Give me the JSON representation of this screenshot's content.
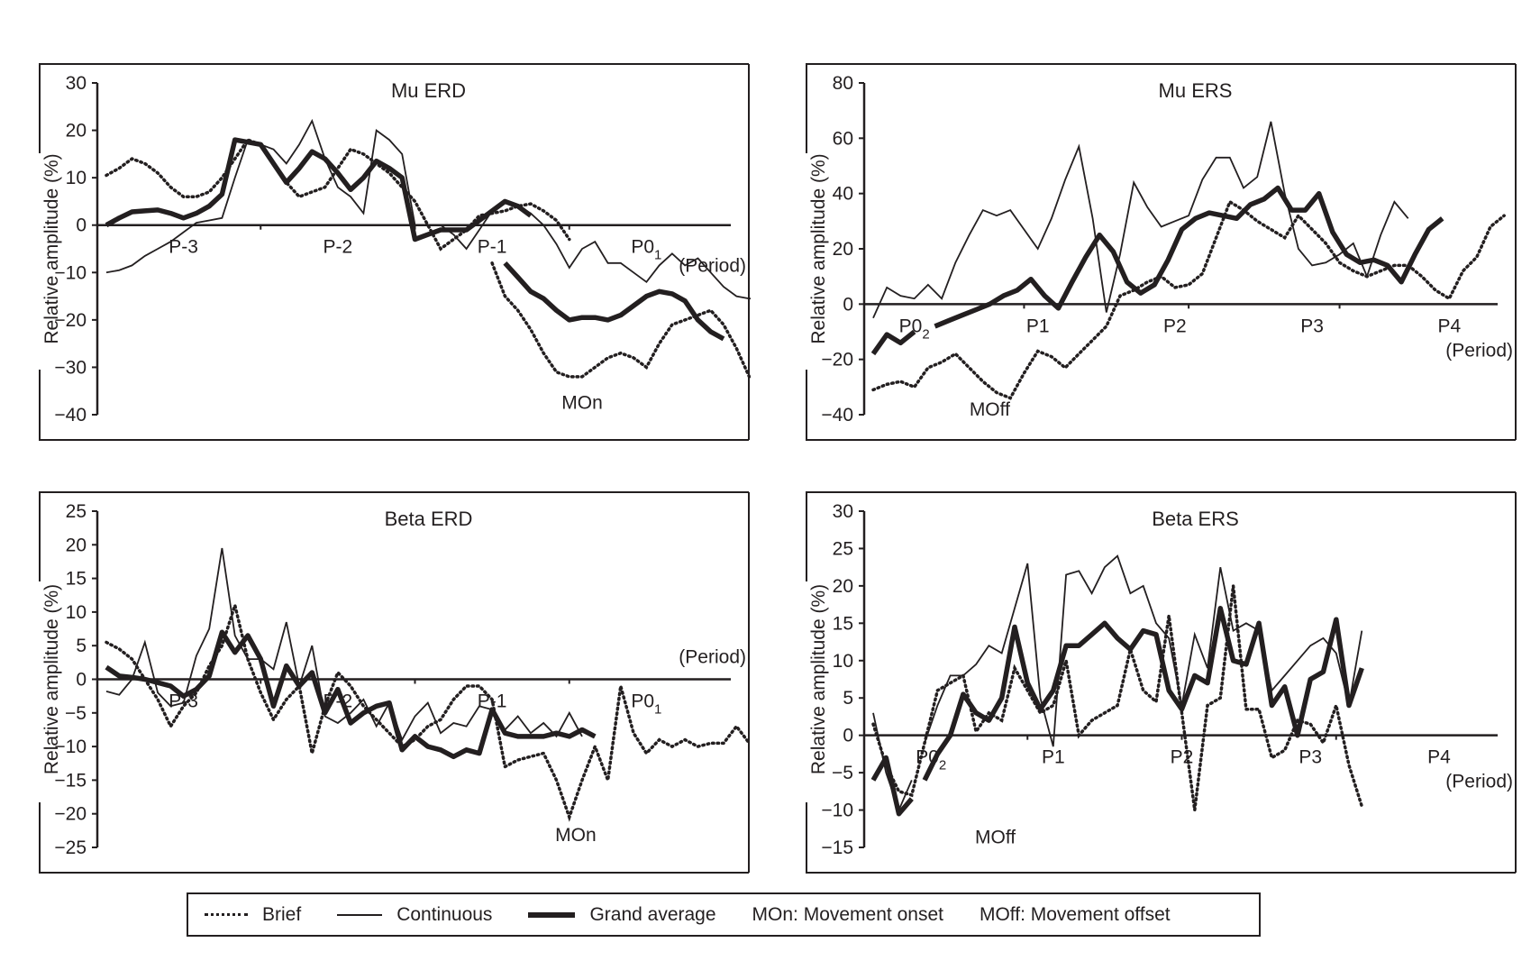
{
  "chart_data": [
    {
      "type": "line",
      "id": "mu-erd",
      "title": "Mu ERD",
      "xlabel": "(Period)",
      "ylabel": "Relative amplitude (%)",
      "ylim": [
        -40,
        30
      ],
      "yticks": [
        30,
        20,
        10,
        0,
        -10,
        -20,
        -30,
        -40
      ],
      "period_labels": [
        {
          "text": "P-3",
          "x": 6
        },
        {
          "text": "P-2",
          "x": 18
        },
        {
          "text": "P-1",
          "x": 30
        },
        {
          "text": "P0",
          "sub": "1",
          "x": 42
        }
      ],
      "event_label": {
        "text": "MOn",
        "x": 37,
        "y": -38
      },
      "period_label_pos": "right-below",
      "x_count": 49,
      "series": [
        {
          "name": "Brief",
          "style": "dotted",
          "segments": [
            {
              "x0": 0,
              "values": [
                10.5,
                12,
                14,
                13,
                11,
                8,
                6,
                6,
                7,
                10,
                14,
                18,
                17,
                13,
                9,
                6,
                7,
                8,
                12,
                16,
                15,
                13,
                11,
                8,
                5,
                0,
                -5,
                -3,
                -1,
                2,
                2.5,
                3,
                4,
                4.5,
                3,
                1,
                -3
              ]
            },
            {
              "x0": 30,
              "values": [
                -8,
                -15,
                -18,
                -22,
                -27,
                -31,
                -32,
                -32,
                -30,
                -28,
                -27,
                -28,
                -30,
                -25,
                -21,
                -20,
                -19,
                -18,
                -21,
                -26,
                -32
              ]
            }
          ]
        },
        {
          "name": "Continuous",
          "style": "thin",
          "segments": [
            {
              "x0": 0,
              "values": [
                -10,
                -9.5,
                -8.5,
                -6.5,
                -5,
                -3.5,
                -1.5,
                0.5,
                1,
                1.5,
                10,
                18,
                17,
                16,
                13,
                17,
                22,
                14,
                8,
                6,
                2.5,
                20,
                18,
                15,
                0,
                0,
                0,
                -2,
                -5,
                -1,
                3,
                5,
                4,
                2.5,
                0,
                -4,
                -9,
                -5,
                -3.5,
                -8,
                -8,
                -10,
                -12,
                -8.5,
                -6,
                -8.5,
                -7,
                -10,
                -13,
                -15,
                -15.5,
                -15.5
              ]
            }
          ]
        },
        {
          "name": "Grand average",
          "style": "thick",
          "segments": [
            {
              "x0": 0,
              "values": [
                0,
                1.5,
                2.8,
                3,
                3.2,
                2.5,
                1.5,
                2.5,
                4,
                6.5,
                18,
                17.5,
                17,
                13,
                9,
                12,
                15.5,
                14,
                11,
                7.5,
                10,
                13.5,
                12,
                10,
                -3,
                -2,
                -1,
                -1,
                -1,
                1,
                3,
                5,
                4,
                2
              ]
            },
            {
              "x0": 31,
              "values": [
                -8,
                -11,
                -14,
                -15.5,
                -18,
                -20,
                -19.5,
                -19.5,
                -20,
                -19,
                -17,
                -15,
                -14,
                -14.5,
                -16,
                -20,
                -22.5,
                -24
              ]
            }
          ]
        }
      ]
    },
    {
      "type": "line",
      "id": "mu-ers",
      "title": "Mu ERS",
      "xlabel": "(Period)",
      "ylabel": "Relative amplitude (%)",
      "ylim": [
        -40,
        80
      ],
      "yticks": [
        80,
        60,
        40,
        20,
        0,
        -20,
        -40
      ],
      "period_labels": [
        {
          "text": "P0",
          "sub": "2",
          "x": 3
        },
        {
          "text": "P1",
          "x": 12
        },
        {
          "text": "P2",
          "x": 22
        },
        {
          "text": "P3",
          "x": 32
        },
        {
          "text": "P4",
          "x": 42
        }
      ],
      "event_label": {
        "text": "MOff",
        "x": 8.5,
        "y": -39
      },
      "x_count": 46,
      "series": [
        {
          "name": "Brief",
          "style": "dotted",
          "segments": [
            {
              "x0": 0,
              "values": [
                -31,
                -29,
                -28,
                -30,
                -23,
                -21,
                -18,
                -23,
                -28,
                -32,
                -34,
                -25,
                -17,
                -19,
                -23,
                -18,
                -13,
                -8,
                3,
                5,
                8,
                10,
                6,
                7,
                11,
                24,
                37,
                34,
                30,
                27,
                24,
                32,
                27,
                22,
                15,
                12,
                10,
                12,
                14,
                14,
                10,
                5,
                2,
                12,
                17,
                28,
                32
              ]
            }
          ]
        },
        {
          "name": "Continuous",
          "style": "thin",
          "segments": [
            {
              "x0": 0,
              "values": [
                -5,
                6,
                3,
                2,
                7,
                2,
                15,
                25,
                34,
                32,
                34,
                27,
                20,
                31,
                45,
                57,
                31,
                -3,
                18,
                44,
                35,
                28,
                30,
                32,
                45,
                53,
                53,
                42,
                46,
                66,
                40,
                20,
                14,
                15,
                18,
                22,
                10,
                25,
                37,
                31
              ]
            }
          ]
        },
        {
          "name": "Grand average",
          "style": "thick",
          "segments": [
            {
              "x0": 0,
              "values": [
                -18,
                -11,
                -14,
                -10
              ]
            },
            {
              "x0": 4.5,
              "values": [
                -8,
                -6,
                -4,
                -2,
                0,
                3,
                5,
                9,
                3,
                -1.5,
                8,
                17,
                25,
                19,
                8,
                4,
                7,
                16,
                27,
                31,
                33,
                32,
                31,
                36,
                38,
                42,
                34,
                34,
                40,
                26,
                18,
                15,
                16,
                14,
                8,
                18,
                27,
                31
              ]
            }
          ]
        }
      ]
    },
    {
      "type": "line",
      "id": "beta-erd",
      "title": "Beta ERD",
      "xlabel": "(Period)",
      "ylabel": "Relative amplitude (%)",
      "ylim": [
        -25,
        25
      ],
      "yticks": [
        25,
        20,
        15,
        10,
        5,
        0,
        -5,
        -10,
        -15,
        -20,
        -25
      ],
      "period_labels": [
        {
          "text": "P-3",
          "x": 6
        },
        {
          "text": "P-2",
          "x": 18
        },
        {
          "text": "P-1",
          "x": 30
        },
        {
          "text": "P0",
          "sub": "1",
          "x": 42
        }
      ],
      "event_label": {
        "text": "MOn",
        "x": 36.5,
        "y": -23.5
      },
      "x_count": 49,
      "series": [
        {
          "name": "Brief",
          "style": "dotted",
          "segments": [
            {
              "x0": 0,
              "values": [
                5.5,
                4.5,
                3,
                0,
                -3,
                -7,
                -4,
                -2,
                2,
                5,
                11,
                3,
                -2,
                -6,
                -3,
                -1,
                -11,
                -4,
                1,
                -1,
                -4,
                -6,
                -8,
                -10,
                -9,
                -7,
                -6,
                -3,
                -1,
                -1,
                -3,
                -13,
                -12,
                -11.5,
                -11,
                -15,
                -20.5,
                -15,
                -10,
                -15,
                -1,
                -8,
                -11,
                -9,
                -10,
                -9,
                -10,
                -9.5,
                -9.5,
                -7,
                -9.5
              ]
            }
          ]
        },
        {
          "name": "Continuous",
          "style": "thin",
          "segments": [
            {
              "x0": 0,
              "values": [
                -1.8,
                -2.3,
                0,
                5.5,
                -2,
                -4,
                -3.5,
                3.5,
                7.5,
                19.5,
                6.5,
                3,
                3,
                1.5,
                8.5,
                -1,
                5,
                -5.5,
                -6.5,
                -5,
                -3,
                -7,
                -3.5,
                -9,
                -5.5,
                -3.5,
                -8,
                -6.5,
                -7,
                -4,
                -4.5,
                -7.5,
                -5.5,
                -8,
                -6.5,
                -8.5,
                -5,
                -8.5
              ]
            }
          ]
        },
        {
          "name": "Grand average",
          "style": "thick",
          "segments": [
            {
              "x0": 0,
              "values": [
                1.8,
                0.5,
                0.3,
                0,
                -0.5,
                -1,
                -2.5,
                -1.5,
                0.5,
                7,
                4,
                6.5,
                3,
                -4,
                2,
                -1,
                1,
                -5,
                -1.5,
                -6.5,
                -5,
                -4,
                -3.5,
                -10.5,
                -8.5,
                -10,
                -10.5,
                -11.5,
                -10.5,
                -11,
                -4.5,
                -8,
                -8.5,
                -8.5,
                -8.5,
                -8,
                -8.5,
                -7.5,
                -8.5
              ]
            }
          ]
        }
      ]
    },
    {
      "type": "line",
      "id": "beta-ers",
      "title": "Beta ERS",
      "xlabel": "(Period)",
      "ylabel": "Relative amplitude (%)",
      "ylim": [
        -15,
        30
      ],
      "yticks": [
        30,
        25,
        20,
        15,
        10,
        5,
        0,
        -5,
        -10,
        -15
      ],
      "period_labels": [
        {
          "text": "P0",
          "sub": "2",
          "x": 4.5
        },
        {
          "text": "P1",
          "x": 14
        },
        {
          "text": "P2",
          "x": 24
        },
        {
          "text": "P3",
          "x": 34
        },
        {
          "text": "P4",
          "x": 44
        }
      ],
      "event_label": {
        "text": "MOff",
        "x": 9.5,
        "y": -14
      },
      "x_count": 49,
      "series": [
        {
          "name": "Brief",
          "style": "dotted",
          "segments": [
            {
              "x0": 0,
              "values": [
                1.5,
                -4,
                -7.5,
                -8,
                -1,
                6,
                7,
                8,
                0.5,
                3,
                2,
                9,
                6,
                3,
                4,
                10,
                0,
                2,
                3,
                4,
                11.5,
                6,
                4.5,
                16,
                3,
                -10,
                4,
                5,
                20,
                3.5,
                3.5,
                -3,
                -2,
                2,
                1.5,
                -1,
                4,
                -4,
                -9.5
              ]
            }
          ]
        },
        {
          "name": "Continuous",
          "style": "thin",
          "segments": [
            {
              "x0": 0,
              "values": [
                3,
                -5,
                -10,
                -6
              ]
            },
            {
              "x0": 4,
              "values": [
                -1,
                4,
                8,
                8,
                9.5,
                12,
                11,
                17,
                23,
                5,
                -1.5,
                21.5,
                22,
                19,
                22.5,
                24,
                19,
                20,
                15,
                13,
                4,
                13.5,
                9,
                22.5,
                14,
                15,
                14,
                6,
                8,
                10,
                12,
                13,
                11,
                4,
                14
              ]
            }
          ]
        },
        {
          "name": "Grand average",
          "style": "thick",
          "segments": [
            {
              "x0": 0,
              "values": [
                -6,
                -3,
                -10.5,
                -8.5
              ]
            },
            {
              "x0": 4,
              "values": [
                -6,
                -2.5,
                0,
                5.5,
                3,
                2,
                5,
                14.5,
                7,
                3.5,
                6,
                12,
                12,
                13.5,
                15,
                13,
                11.5,
                14,
                13.5,
                6,
                3.5,
                8,
                7,
                17,
                10,
                9.5,
                15,
                4,
                6.5,
                0,
                7.5,
                8.5,
                15.5,
                4,
                9
              ]
            }
          ]
        }
      ]
    }
  ],
  "legend": {
    "items": [
      {
        "label": "Brief",
        "style": "dotted"
      },
      {
        "label": "Continuous",
        "style": "thin"
      },
      {
        "label": "Grand average",
        "style": "thick"
      },
      {
        "label": "MOn: Movement onset",
        "style": "none"
      },
      {
        "label": "MOff: Movement offset",
        "style": "none"
      }
    ]
  },
  "colors": {
    "ink": "#231f20",
    "background": "#ffffff"
  }
}
